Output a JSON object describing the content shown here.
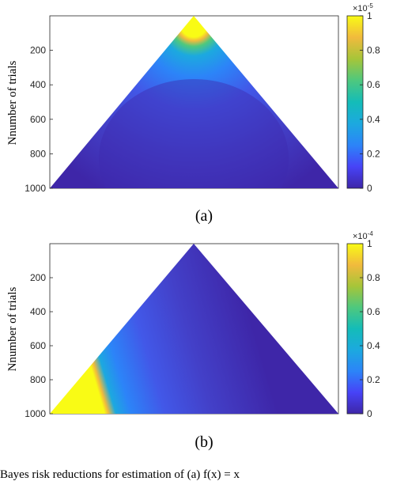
{
  "chart_data": [
    {
      "type": "heatmap",
      "panel_label": "(a)",
      "ylabel": "Nnumber of trials",
      "yticks": [
        200,
        400,
        600,
        800,
        1000
      ],
      "ylim": [
        0,
        1000
      ],
      "y_reversed": true,
      "colorbar": {
        "ticks": [
          "0",
          "0.2",
          "0.4",
          "0.6",
          "0.8",
          "1"
        ],
        "tick_values": [
          0,
          0.2,
          0.4,
          0.6,
          0.8,
          1
        ],
        "multiplier": "×10",
        "exponent": "-5",
        "colormap": "parula"
      },
      "shape": "triangle",
      "peak_location": "apex-center"
    },
    {
      "type": "heatmap",
      "panel_label": "(b)",
      "ylabel": "Nnumber of trials",
      "yticks": [
        200,
        400,
        600,
        800,
        1000
      ],
      "ylim": [
        0,
        1000
      ],
      "y_reversed": true,
      "colorbar": {
        "ticks": [
          "0",
          "0.2",
          "0.4",
          "0.6",
          "0.8",
          "1"
        ],
        "tick_values": [
          0,
          0.2,
          0.4,
          0.6,
          0.8,
          1
        ],
        "multiplier": "×10",
        "exponent": "-4",
        "colormap": "parula"
      },
      "shape": "triangle",
      "peak_location": "left-edge"
    }
  ],
  "figure_caption": "Bayes risk reductions for estimation of (a)  f(x) = x"
}
